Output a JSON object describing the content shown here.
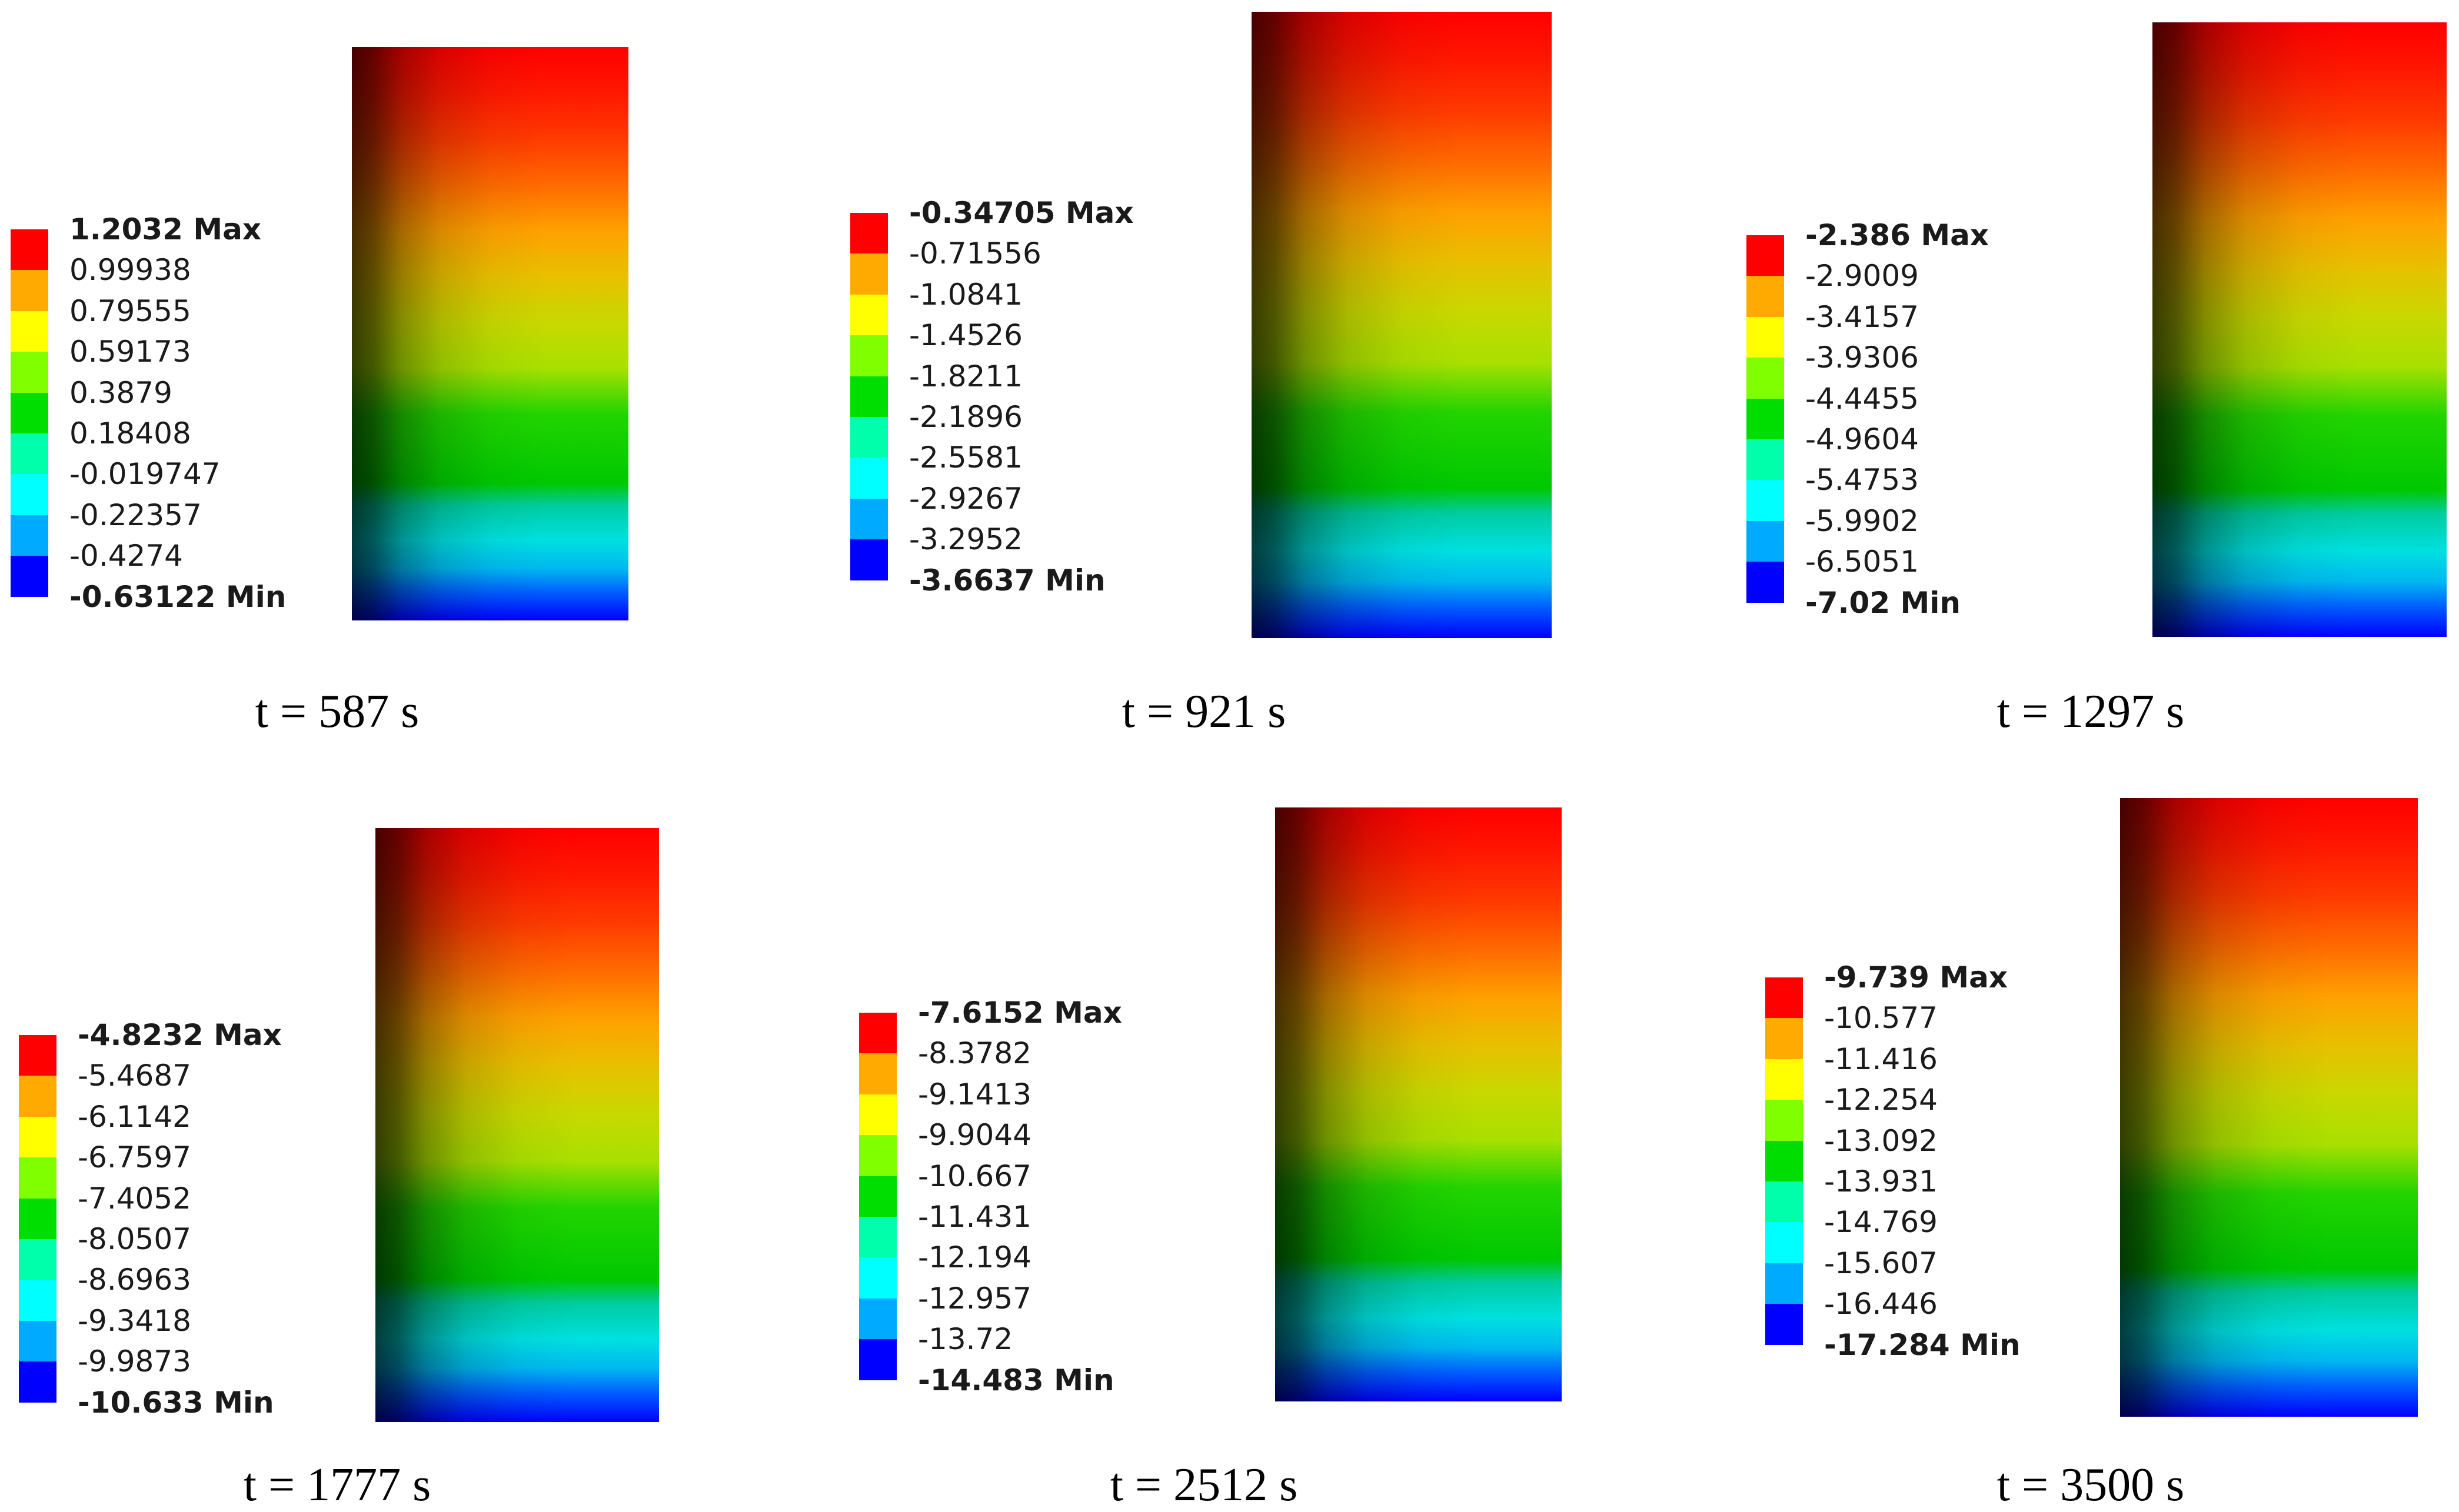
{
  "colors": [
    "#ff0000",
    "#ffaa00",
    "#ffff00",
    "#80ff00",
    "#00dd00",
    "#00ffaa",
    "#00ffff",
    "#00aaff",
    "#0000ff"
  ],
  "panels": [
    {
      "time_label": "t = 587 s",
      "labels": [
        "1.2032 Max",
        "0.99938",
        "0.79555",
        "0.59173",
        "0.3879",
        "0.18408",
        "-0.019747",
        "-0.22357",
        "-0.4274",
        "-0.63122 Min"
      ]
    },
    {
      "time_label": "t = 921 s",
      "labels": [
        "-0.34705 Max",
        "-0.71556",
        "-1.0841",
        "-1.4526",
        "-1.8211",
        "-2.1896",
        "-2.5581",
        "-2.9267",
        "-3.2952",
        "-3.6637 Min"
      ]
    },
    {
      "time_label": "t = 1297 s",
      "labels": [
        "-2.386 Max",
        "-2.9009",
        "-3.4157",
        "-3.9306",
        "-4.4455",
        "-4.9604",
        "-5.4753",
        "-5.9902",
        "-6.5051",
        "-7.02 Min"
      ]
    },
    {
      "time_label": "t = 1777 s",
      "labels": [
        "-4.8232 Max",
        "-5.4687",
        "-6.1142",
        "-6.7597",
        "-7.4052",
        "-8.0507",
        "-8.6963",
        "-9.3418",
        "-9.9873",
        "-10.633 Min"
      ]
    },
    {
      "time_label": "t = 2512 s",
      "labels": [
        "-7.6152 Max",
        "-8.3782",
        "-9.1413",
        "-9.9044",
        "-10.667",
        "-11.431",
        "-12.194",
        "-12.957",
        "-13.72",
        "-14.483 Min"
      ]
    },
    {
      "time_label": "t = 3500 s",
      "labels": [
        "-9.739 Max",
        "-10.577",
        "-11.416",
        "-12.254",
        "-13.092",
        "-13.931",
        "-14.769",
        "-15.607",
        "-16.446",
        "-17.284 Min"
      ]
    }
  ]
}
